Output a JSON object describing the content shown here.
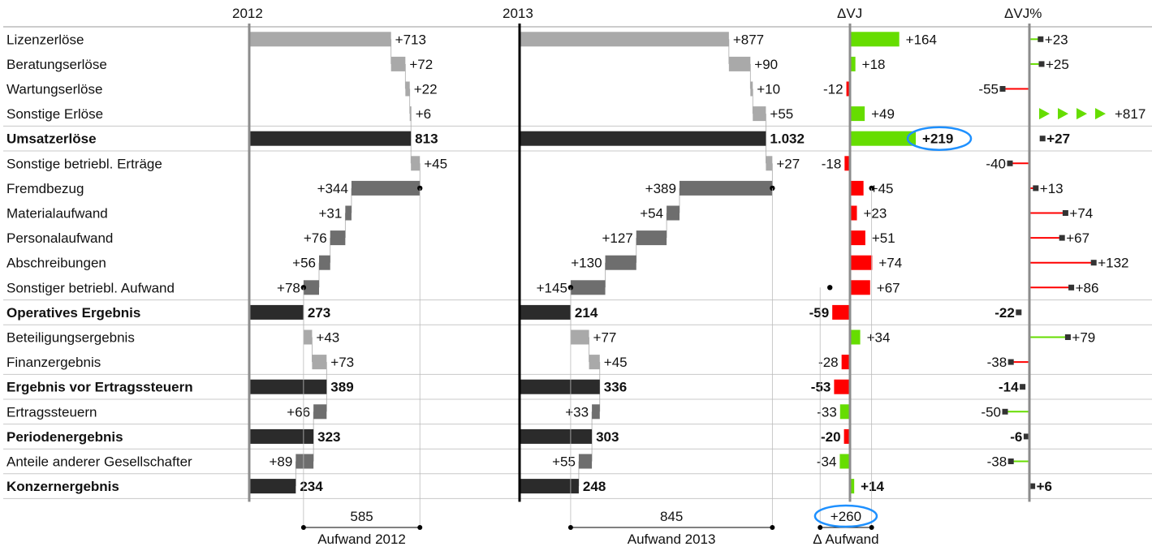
{
  "chart_data": {
    "type": "bar",
    "subtype": "income-statement-waterfall-variance",
    "columns": [
      {
        "key": "y2012",
        "label": "2012"
      },
      {
        "key": "y2013",
        "label": "2013"
      },
      {
        "key": "dvj",
        "label": "ΔVJ"
      },
      {
        "key": "dvjp",
        "label": "ΔVJ%"
      }
    ],
    "rows": [
      {
        "label": "Lizenzerlöse",
        "bold": false,
        "kind": "add",
        "v2012": 713,
        "v2013": 877,
        "dvj": 164,
        "dvjp": 23,
        "v2012_label": "+713",
        "v2013_label": "+877",
        "dvj_label": "+164",
        "dvjp_label": "+23"
      },
      {
        "label": "Beratungserlöse",
        "bold": false,
        "kind": "add",
        "v2012": 72,
        "v2013": 90,
        "dvj": 18,
        "dvjp": 25,
        "v2012_label": "+72",
        "v2013_label": "+90",
        "dvj_label": "+18",
        "dvjp_label": "+25"
      },
      {
        "label": "Wartungserlöse",
        "bold": false,
        "kind": "add",
        "v2012": 22,
        "v2013": 10,
        "dvj": -12,
        "dvjp": -55,
        "v2012_label": "+22",
        "v2013_label": "+10",
        "dvj_label": "-12",
        "dvjp_label": "-55"
      },
      {
        "label": "Sonstige Erlöse",
        "bold": false,
        "kind": "add",
        "v2012": 6,
        "v2013": 55,
        "dvj": 49,
        "dvjp": 817,
        "v2012_label": "+6",
        "v2013_label": "+55",
        "dvj_label": "+49",
        "dvjp_label": "+817"
      },
      {
        "label": "Umsatzerlöse",
        "bold": true,
        "kind": "total",
        "v2012": 813,
        "v2013": 1032,
        "dvj": 219,
        "dvjp": 27,
        "v2012_label": "813",
        "v2013_label": "1.032",
        "dvj_label": "+219",
        "dvjp_label": "+27"
      },
      {
        "label": "Sonstige betriebl. Erträge",
        "bold": false,
        "kind": "add",
        "v2012": 45,
        "v2013": 27,
        "dvj": -18,
        "dvjp": -40,
        "v2012_label": "+45",
        "v2013_label": "+27",
        "dvj_label": "-18",
        "dvjp_label": "-40"
      },
      {
        "label": "Fremdbezug",
        "bold": false,
        "kind": "sub",
        "v2012": 344,
        "v2013": 389,
        "dvj": 45,
        "dvjp": 13,
        "v2012_label": "+344",
        "v2013_label": "+389",
        "dvj_label": "+45",
        "dvjp_label": "+13"
      },
      {
        "label": "Materialaufwand",
        "bold": false,
        "kind": "sub",
        "v2012": 31,
        "v2013": 54,
        "dvj": 23,
        "dvjp": 74,
        "v2012_label": "+31",
        "v2013_label": "+54",
        "dvj_label": "+23",
        "dvjp_label": "+74"
      },
      {
        "label": "Personalaufwand",
        "bold": false,
        "kind": "sub",
        "v2012": 76,
        "v2013": 127,
        "dvj": 51,
        "dvjp": 67,
        "v2012_label": "+76",
        "v2013_label": "+127",
        "dvj_label": "+51",
        "dvjp_label": "+67"
      },
      {
        "label": "Abschreibungen",
        "bold": false,
        "kind": "sub",
        "v2012": 56,
        "v2013": 130,
        "dvj": 74,
        "dvjp": 132,
        "v2012_label": "+56",
        "v2013_label": "+130",
        "dvj_label": "+74",
        "dvjp_label": "+132"
      },
      {
        "label": "Sonstiger betriebl. Aufwand",
        "bold": false,
        "kind": "sub",
        "v2012": 78,
        "v2013": 145,
        "dvj": 67,
        "dvjp": 86,
        "v2012_label": "+78",
        "v2013_label": "+145",
        "dvj_label": "+67",
        "dvjp_label": "+86"
      },
      {
        "label": "Operatives Ergebnis",
        "bold": true,
        "kind": "total",
        "v2012": 273,
        "v2013": 214,
        "dvj": -59,
        "dvjp": -22,
        "v2012_label": "273",
        "v2013_label": "214",
        "dvj_label": "-59",
        "dvjp_label": "-22"
      },
      {
        "label": "Beteiligungsergebnis",
        "bold": false,
        "kind": "add",
        "v2012": 43,
        "v2013": 77,
        "dvj": 34,
        "dvjp": 79,
        "v2012_label": "+43",
        "v2013_label": "+77",
        "dvj_label": "+34",
        "dvjp_label": "+79"
      },
      {
        "label": "Finanzergebnis",
        "bold": false,
        "kind": "add",
        "v2012": 73,
        "v2013": 45,
        "dvj": -28,
        "dvjp": -38,
        "v2012_label": "+73",
        "v2013_label": "+45",
        "dvj_label": "-28",
        "dvjp_label": "-38"
      },
      {
        "label": "Ergebnis vor Ertragssteuern",
        "bold": true,
        "kind": "total",
        "v2012": 389,
        "v2013": 336,
        "dvj": -53,
        "dvjp": -14,
        "v2012_label": "389",
        "v2013_label": "336",
        "dvj_label": "-53",
        "dvjp_label": "-14"
      },
      {
        "label": "Ertragssteuern",
        "bold": false,
        "kind": "sub",
        "v2012": 66,
        "v2013": 33,
        "dvj": -33,
        "dvjp": -50,
        "v2012_label": "+66",
        "v2013_label": "+33",
        "dvj_label": "-33",
        "dvjp_label": "-50"
      },
      {
        "label": "Periodenergebnis",
        "bold": true,
        "kind": "total",
        "v2012": 323,
        "v2013": 303,
        "dvj": -20,
        "dvjp": -6,
        "v2012_label": "323",
        "v2013_label": "303",
        "dvj_label": "-20",
        "dvjp_label": "-6"
      },
      {
        "label": "Anteile anderer Gesellschafter",
        "bold": false,
        "kind": "sub",
        "v2012": 89,
        "v2013": 55,
        "dvj": -34,
        "dvjp": -38,
        "v2012_label": "+89",
        "v2013_label": "+55",
        "dvj_label": "-34",
        "dvjp_label": "-38"
      },
      {
        "label": "Konzernergebnis",
        "bold": true,
        "kind": "total",
        "v2012": 234,
        "v2013": 248,
        "dvj": 14,
        "dvjp": 6,
        "v2012_label": "234",
        "v2013_label": "248",
        "dvj_label": "+14",
        "dvjp_label": "+6"
      }
    ],
    "brackets": [
      {
        "column": "y2012",
        "value": 585,
        "label": "Aufwand 2012",
        "value_label": "585"
      },
      {
        "column": "y2013",
        "value": 845,
        "label": "Aufwand 2013",
        "value_label": "845"
      },
      {
        "column": "dvj",
        "value": 260,
        "label": "Δ Aufwand",
        "value_label": "+260",
        "highlight": true
      }
    ],
    "highlights": [
      {
        "row": "Umsatzerlöse",
        "column": "dvj"
      }
    ],
    "dvjp_axis_max": 140,
    "truncated_marker_row": "Sonstige Erlöse",
    "colors": {
      "total": "#2b2b2b",
      "revenue": "#a9a9a9",
      "expense": "#6e6e6e",
      "positive": "#66dd00",
      "negative": "#ff0000",
      "highlight_ring": "#1e90ff",
      "separator": "#c8c8c8"
    }
  }
}
